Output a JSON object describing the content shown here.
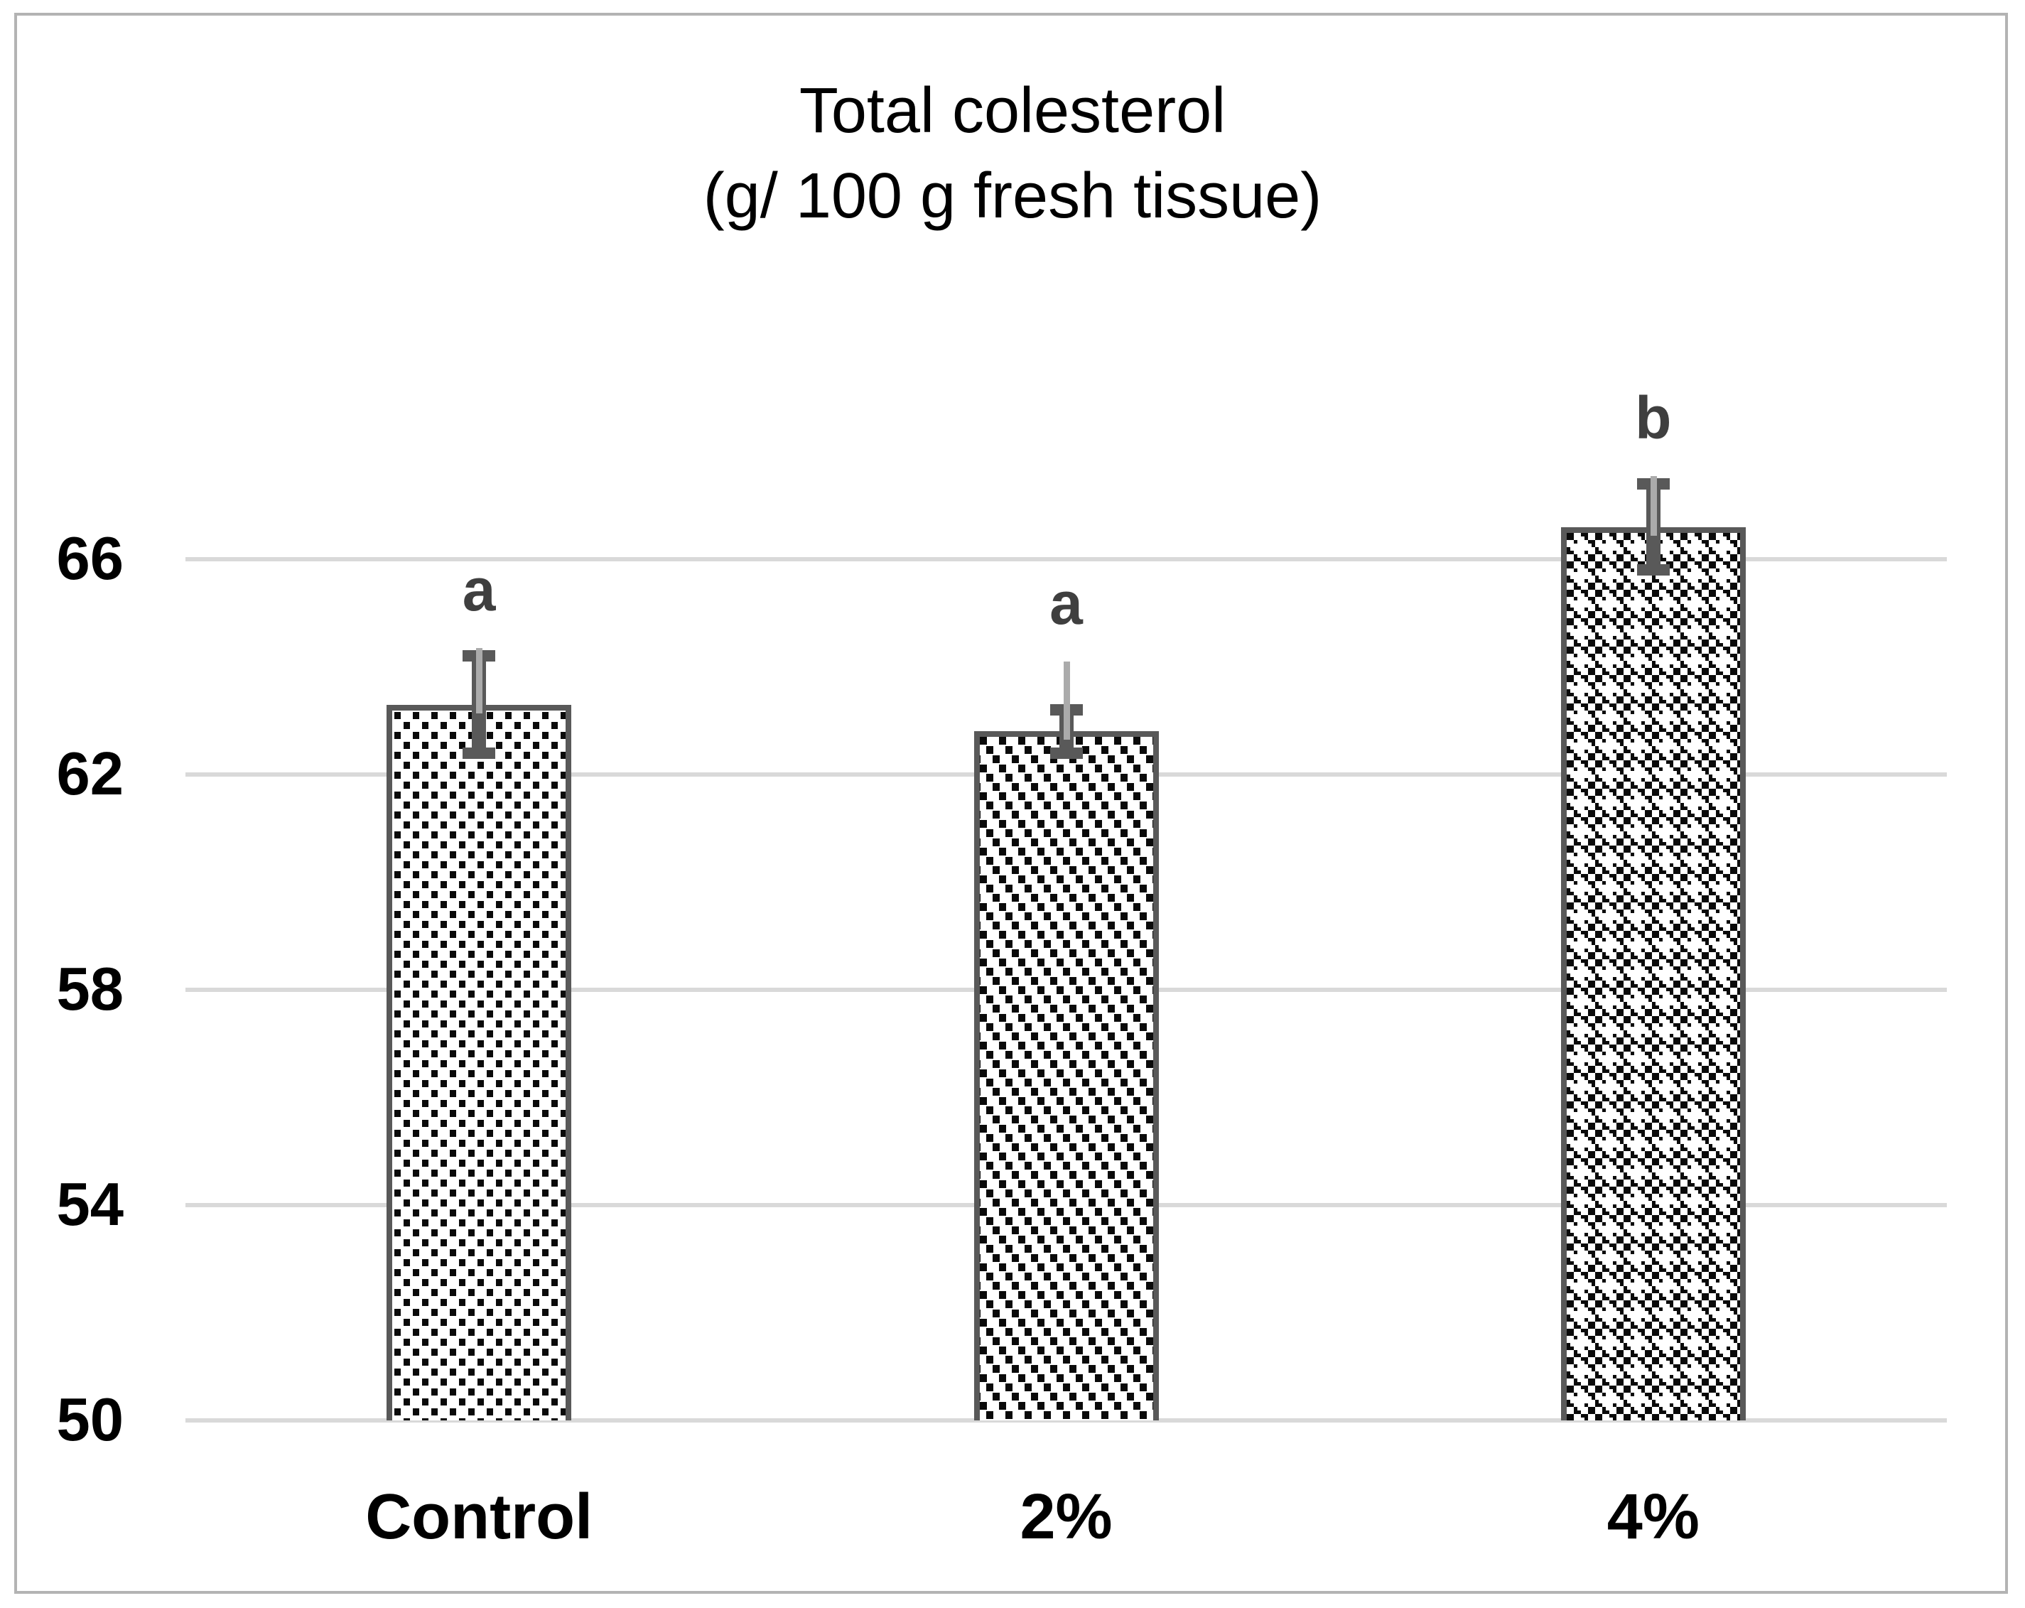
{
  "chart_data": {
    "type": "bar",
    "title": "Total colesterol",
    "subtitle": "(g/ 100 g fresh tissue)",
    "categories": [
      "Control",
      "2%",
      "4%"
    ],
    "values": [
      63.3,
      62.8,
      66.6
    ],
    "significance_letters": [
      "a",
      "a",
      "b"
    ],
    "error_bars": [
      {
        "upper": 64.2,
        "lower": 62.4,
        "whisker_top": 64.35
      },
      {
        "upper": 63.2,
        "lower": 62.4,
        "whisker_top": 64.1
      },
      {
        "upper": 67.4,
        "lower": 65.8,
        "whisker_top": 67.55
      }
    ],
    "bar_patterns": [
      "dotted",
      "diagonal-dashes",
      "checkerboard-plus"
    ],
    "y_ticks": [
      50,
      54,
      58,
      62,
      66
    ],
    "ylim": [
      50,
      68.6
    ],
    "grid": true,
    "legend": "none",
    "colors": {
      "gridline": "#d9d9d9",
      "bar_border": "#595959",
      "error_bar_dark": "#595959",
      "error_bar_light": "#ababab",
      "significance_letter": "#3f3f3f",
      "pattern_ink": "#0a0a0a",
      "frame": "#b3b3b3",
      "text": "#000000",
      "background": "#ffffff"
    }
  }
}
